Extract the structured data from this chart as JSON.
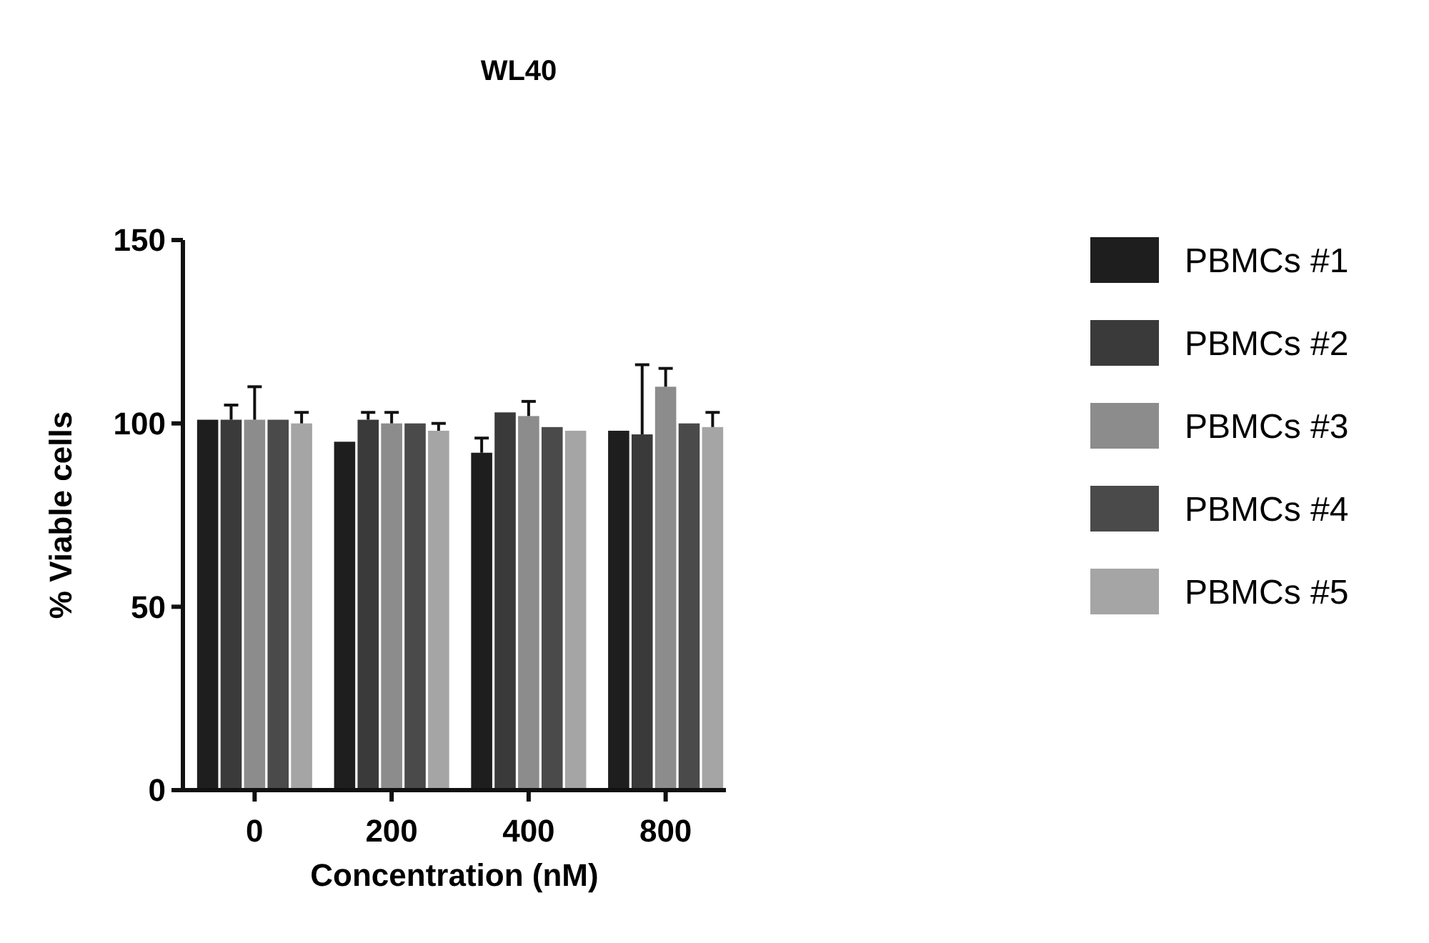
{
  "chart_data": {
    "type": "bar",
    "title": "WL40",
    "xlabel": "Concentration (nM)",
    "ylabel": "% Viable cells",
    "categories": [
      "0",
      "200",
      "400",
      "800"
    ],
    "ylim": [
      0,
      150
    ],
    "yticks": [
      0,
      50,
      100,
      150
    ],
    "grid": false,
    "legend": "right",
    "series": [
      {
        "name": "PBMCs #1",
        "color": "#1e1e1e",
        "values": [
          101,
          95,
          92,
          98
        ],
        "errors": [
          null,
          null,
          [
            92,
            96
          ],
          null
        ]
      },
      {
        "name": "PBMCs #2",
        "color": "#3a3a3a",
        "values": [
          101,
          101,
          103,
          97
        ],
        "errors": [
          [
            101,
            105
          ],
          [
            101,
            103
          ],
          null,
          [
            97,
            116
          ]
        ]
      },
      {
        "name": "PBMCs #3",
        "color": "#8c8c8c",
        "values": [
          101,
          100,
          102,
          110
        ],
        "errors": [
          [
            101,
            110
          ],
          [
            100,
            103
          ],
          [
            102,
            106
          ],
          [
            110,
            115
          ]
        ]
      },
      {
        "name": "PBMCs #4",
        "color": "#4a4a4a",
        "values": [
          101,
          100,
          99,
          100
        ]
      },
      {
        "name": "PBMCs #5",
        "color": "#a5a5a5",
        "values": [
          100,
          98,
          98,
          99
        ],
        "errors": [
          [
            100,
            103
          ],
          [
            98,
            100
          ],
          null,
          [
            99,
            103
          ]
        ]
      }
    ]
  }
}
